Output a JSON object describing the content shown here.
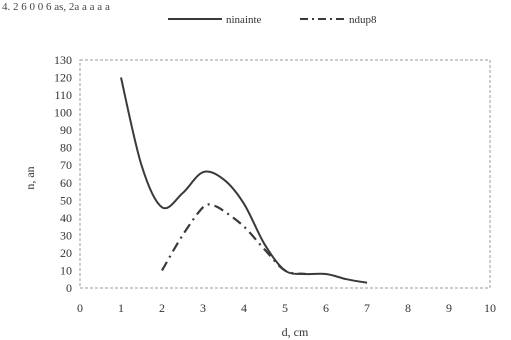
{
  "header_fragment": "4. 2 6 0 0 6 as, 2a a a a a",
  "chart_data": {
    "type": "line",
    "xlabel": "d, cm",
    "ylabel": "n, an",
    "xlim": [
      0,
      10
    ],
    "ylim": [
      0,
      130
    ],
    "x_ticks": [
      "0",
      "1",
      "2",
      "3",
      "4",
      "5",
      "6",
      "7",
      "8",
      "9",
      "10"
    ],
    "y_ticks": [
      "0",
      "10",
      "20",
      "30",
      "40",
      "50",
      "60",
      "70",
      "80",
      "90",
      "100",
      "110",
      "120",
      "130"
    ],
    "legend_position": "top-center",
    "series": [
      {
        "name": "ninainte",
        "style": "solid",
        "color": "#3a3a3a",
        "points": [
          [
            1,
            120
          ],
          [
            1.5,
            70
          ],
          [
            2,
            46
          ],
          [
            2.5,
            54
          ],
          [
            3,
            66
          ],
          [
            3.5,
            62
          ],
          [
            4,
            48
          ],
          [
            4.5,
            25
          ],
          [
            5,
            10
          ],
          [
            5.5,
            8
          ],
          [
            6,
            8
          ],
          [
            6.5,
            5
          ],
          [
            7,
            3
          ]
        ]
      },
      {
        "name": "ndup8",
        "style": "dashdot",
        "color": "#3a3a3a",
        "points": [
          [
            2,
            10
          ],
          [
            2.5,
            30
          ],
          [
            3,
            46
          ],
          [
            3.25,
            47
          ],
          [
            3.5,
            44
          ],
          [
            4,
            35
          ],
          [
            4.5,
            22
          ],
          [
            5,
            10
          ],
          [
            5.5,
            8
          ]
        ]
      }
    ],
    "grid": false
  }
}
